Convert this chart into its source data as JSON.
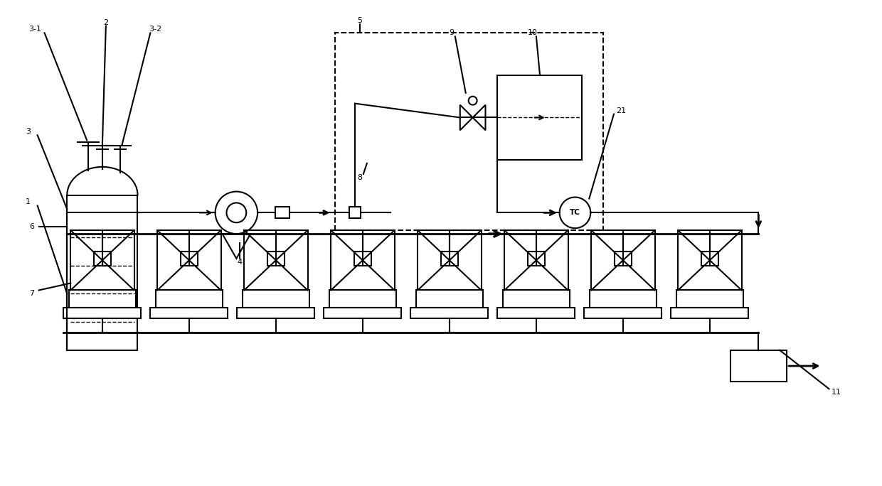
{
  "bg_color": "#ffffff",
  "line_color": "#000000",
  "fig_width": 12.4,
  "fig_height": 6.84,
  "dpi": 100
}
